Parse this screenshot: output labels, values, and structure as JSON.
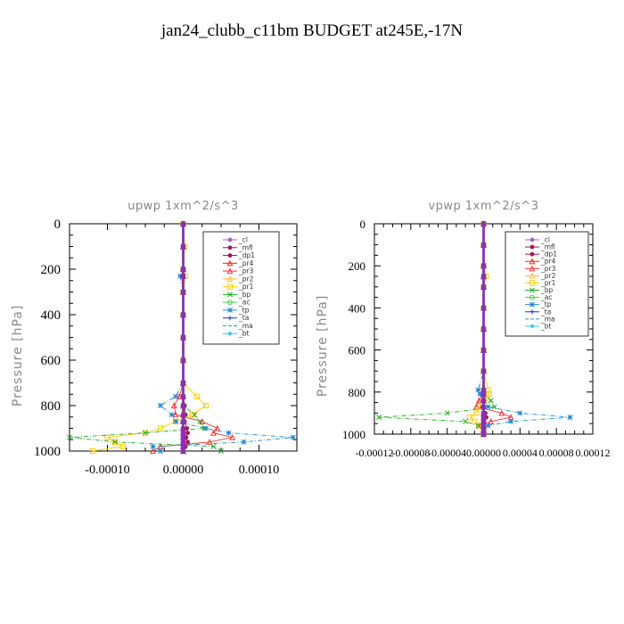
{
  "figure": {
    "title": "jan24_clubb_c11bm  BUDGET at245E,-17N"
  },
  "legend_items": [
    {
      "label": "_cl",
      "color": "#9966cc",
      "marker": "dot"
    },
    {
      "label": "_mfl",
      "color": "#aa1155",
      "marker": "dot"
    },
    {
      "label": "_dp1",
      "color": "#aa1155",
      "marker": "dot"
    },
    {
      "label": "_pr4",
      "color": "#ee2222",
      "marker": "tri"
    },
    {
      "label": "_pr3",
      "color": "#ee3333",
      "marker": "tri"
    },
    {
      "label": "_pr2",
      "color": "#ffbb33",
      "marker": "tri"
    },
    {
      "label": "_pr1",
      "color": "#ffcc00",
      "marker": "square"
    },
    {
      "label": "_bp",
      "color": "#22aa22",
      "marker": "x"
    },
    {
      "label": "_ac",
      "color": "#44cc44",
      "marker": "circle"
    },
    {
      "label": "_tp",
      "color": "#2288cc",
      "marker": "star"
    },
    {
      "label": "_ta",
      "color": "#2233cc",
      "marker": "plus"
    },
    {
      "label": "_ma",
      "color": "#2299dd",
      "marker": "none"
    },
    {
      "label": "_bt",
      "color": "#22ccee",
      "marker": "diamond"
    }
  ],
  "chart_data": [
    {
      "type": "line",
      "title": "upwp   1xm^2/s^3",
      "xlabel": "",
      "ylabel": "Pressure [hPa]",
      "xlim": [
        -0.00015,
        0.00015
      ],
      "ylim": [
        1000,
        0
      ],
      "xticks": [
        -0.0001,
        0,
        0.0001
      ],
      "xtick_labels": [
        "-0.00010",
        "0.00000",
        "0.00010"
      ],
      "yticks": [
        0,
        200,
        400,
        600,
        800,
        1000
      ],
      "ytick_labels": [
        "0",
        "200",
        "400",
        "600",
        "800",
        "1000"
      ],
      "legend_placement": "top-right",
      "y": [
        0,
        100,
        200,
        230,
        300,
        400,
        500,
        600,
        700,
        760,
        800,
        840,
        870,
        900,
        920,
        940,
        960,
        980,
        1000
      ],
      "series": [
        {
          "name": "_cl",
          "values": [
            0,
            0,
            0,
            0,
            0,
            0,
            0,
            0,
            0,
            0,
            0,
            0,
            0,
            0,
            0,
            0,
            0,
            0,
            0
          ]
        },
        {
          "name": "_mfl",
          "values": [
            0,
            0,
            0,
            0,
            0,
            0,
            0,
            0,
            0,
            0,
            0,
            0,
            0,
            0,
            0,
            0,
            0,
            0,
            0
          ]
        },
        {
          "name": "_dp1",
          "values": [
            0,
            0,
            0,
            0,
            0,
            0,
            0,
            0,
            0,
            0,
            2e-06,
            3e-06,
            2e-06,
            5e-06,
            6e-06,
            4e-06,
            6e-06,
            3e-06,
            0
          ]
        },
        {
          "name": "_pr4",
          "values": [
            0,
            0,
            0,
            0,
            0,
            0,
            0,
            0,
            0,
            0,
            0,
            0,
            0,
            0,
            0,
            0,
            0,
            0,
            0
          ]
        },
        {
          "name": "_pr3",
          "values": [
            0,
            0,
            0,
            0,
            0,
            0,
            0,
            0,
            0,
            -5e-06,
            -1.2e-05,
            -1e-05,
            2.5e-05,
            4.5e-05,
            4e-05,
            6.5e-05,
            3.5e-05,
            -3e-05,
            -4e-05
          ]
        },
        {
          "name": "_pr2",
          "values": [
            0,
            0,
            0,
            0,
            0,
            0,
            0,
            0,
            0,
            0,
            0,
            0,
            0,
            0,
            0,
            0,
            0,
            0,
            0
          ]
        },
        {
          "name": "_pr1",
          "values": [
            0,
            2e-06,
            0,
            3e-06,
            0,
            0,
            0,
            0,
            0,
            1.8e-05,
            3e-05,
            1.2e-05,
            -1e-05,
            -3e-05,
            -5e-05,
            -0.0001,
            -9e-05,
            -8e-05,
            -0.00012
          ]
        },
        {
          "name": "_bp",
          "values": [
            0,
            0,
            0,
            0,
            0,
            0,
            0,
            0,
            0,
            0,
            0,
            1.5e-05,
            2.2e-05,
            2.8e-05,
            -5e-05,
            -0.00015,
            -9e-05,
            4e-05,
            5e-05
          ]
        },
        {
          "name": "_ac",
          "values": [
            0,
            0,
            0,
            0,
            0,
            0,
            0,
            0,
            0,
            0,
            0,
            0,
            0,
            0,
            0,
            0,
            0,
            0,
            0
          ]
        },
        {
          "name": "_tp",
          "values": [
            0,
            0,
            0,
            -4e-06,
            0,
            0,
            0,
            0,
            0,
            -1e-05,
            -3e-05,
            -1.5e-05,
            -1e-05,
            3e-05,
            6e-05,
            0.000145,
            8e-05,
            -4e-05,
            -3e-05
          ]
        },
        {
          "name": "_ta",
          "values": [
            0,
            0,
            0,
            0,
            0,
            0,
            0,
            0,
            0,
            0,
            0,
            0,
            0,
            0,
            0,
            0,
            0,
            0,
            0
          ]
        },
        {
          "name": "_ma",
          "values": [
            0,
            0,
            0,
            0,
            0,
            0,
            0,
            0,
            0,
            0,
            0,
            0,
            0,
            0,
            0,
            0,
            0,
            0,
            0
          ]
        },
        {
          "name": "_bt",
          "values": [
            0,
            0,
            0,
            0,
            0,
            0,
            0,
            0,
            0,
            0,
            0,
            0,
            0,
            0,
            0,
            0,
            0,
            0,
            0
          ]
        }
      ]
    },
    {
      "type": "line",
      "title": "vpwp   1xm^2/s^3",
      "xlabel": "",
      "ylabel": "Pressure [hPa]",
      "xlim": [
        -0.00012,
        0.00012
      ],
      "ylim": [
        1000,
        0
      ],
      "xticks": [
        -0.00012,
        -8e-05,
        -4e-05,
        0,
        4e-05,
        8e-05,
        0.00012
      ],
      "xtick_labels": [
        "-0.00012",
        "-0.00008",
        "-0.00004",
        "0.00000",
        "0.00004",
        "0.00008",
        "0.00012"
      ],
      "yticks": [
        0,
        200,
        400,
        600,
        800,
        1000
      ],
      "ytick_labels": [
        "0",
        "200",
        "400",
        "600",
        "800",
        "1000"
      ],
      "legend_placement": "top-right",
      "y": [
        0,
        100,
        200,
        250,
        300,
        400,
        500,
        600,
        700,
        790,
        810,
        840,
        870,
        900,
        920,
        940,
        960,
        980,
        1000
      ],
      "series": [
        {
          "name": "_cl",
          "values": [
            0,
            0,
            0,
            0,
            0,
            0,
            0,
            0,
            0,
            0,
            0,
            0,
            0,
            0,
            0,
            0,
            0,
            0,
            0
          ]
        },
        {
          "name": "_mfl",
          "values": [
            0,
            0,
            0,
            0,
            0,
            0,
            0,
            0,
            0,
            0,
            0,
            0,
            0,
            0,
            0,
            0,
            0,
            0,
            0
          ]
        },
        {
          "name": "_dp1",
          "values": [
            0,
            0,
            0,
            0,
            0,
            0,
            0,
            0,
            0,
            0,
            0,
            0,
            -2e-06,
            2e-06,
            3e-06,
            0,
            0,
            0,
            0
          ]
        },
        {
          "name": "_pr4",
          "values": [
            0,
            0,
            0,
            0,
            0,
            0,
            0,
            0,
            0,
            0,
            0,
            0,
            0,
            0,
            0,
            0,
            0,
            0,
            0
          ]
        },
        {
          "name": "_pr3",
          "values": [
            0,
            0,
            0,
            0,
            0,
            0,
            0,
            0,
            0,
            0,
            0,
            -5e-06,
            -8e-06,
            2e-05,
            3e-05,
            8e-06,
            -5e-06,
            0,
            0
          ]
        },
        {
          "name": "_pr2",
          "values": [
            0,
            0,
            0,
            0,
            0,
            0,
            0,
            0,
            0,
            0,
            0,
            0,
            0,
            0,
            0,
            0,
            0,
            0,
            0
          ]
        },
        {
          "name": "_pr1",
          "values": [
            0,
            0,
            0,
            3e-06,
            0,
            0,
            0,
            0,
            0,
            5e-06,
            6e-06,
            4e-06,
            -4e-06,
            -8e-06,
            -1.5e-05,
            -1e-05,
            -4e-06,
            0,
            0
          ]
        },
        {
          "name": "_bp",
          "values": [
            0,
            0,
            0,
            0,
            0,
            0,
            0,
            0,
            0,
            0,
            0,
            8e-06,
            1.2e-05,
            -4e-05,
            -0.000115,
            -2e-05,
            -6e-06,
            0,
            0
          ]
        },
        {
          "name": "_ac",
          "values": [
            0,
            0,
            0,
            0,
            0,
            0,
            0,
            0,
            0,
            0,
            0,
            0,
            0,
            0,
            0,
            0,
            0,
            0,
            0
          ]
        },
        {
          "name": "_tp",
          "values": [
            0,
            0,
            0,
            0,
            0,
            0,
            0,
            0,
            0,
            -6e-06,
            -4e-06,
            0,
            5e-06,
            4e-05,
            9.5e-05,
            3e-05,
            5e-06,
            0,
            0
          ]
        },
        {
          "name": "_ta",
          "values": [
            0,
            0,
            0,
            0,
            0,
            0,
            0,
            0,
            0,
            0,
            0,
            0,
            0,
            0,
            0,
            0,
            0,
            0,
            0
          ]
        },
        {
          "name": "_ma",
          "values": [
            0,
            0,
            0,
            0,
            0,
            0,
            0,
            0,
            0,
            0,
            0,
            0,
            0,
            0,
            0,
            0,
            0,
            0,
            0
          ]
        },
        {
          "name": "_bt",
          "values": [
            0,
            0,
            0,
            0,
            0,
            0,
            0,
            0,
            0,
            0,
            0,
            0,
            0,
            0,
            0,
            0,
            0,
            0,
            0
          ]
        }
      ]
    }
  ]
}
